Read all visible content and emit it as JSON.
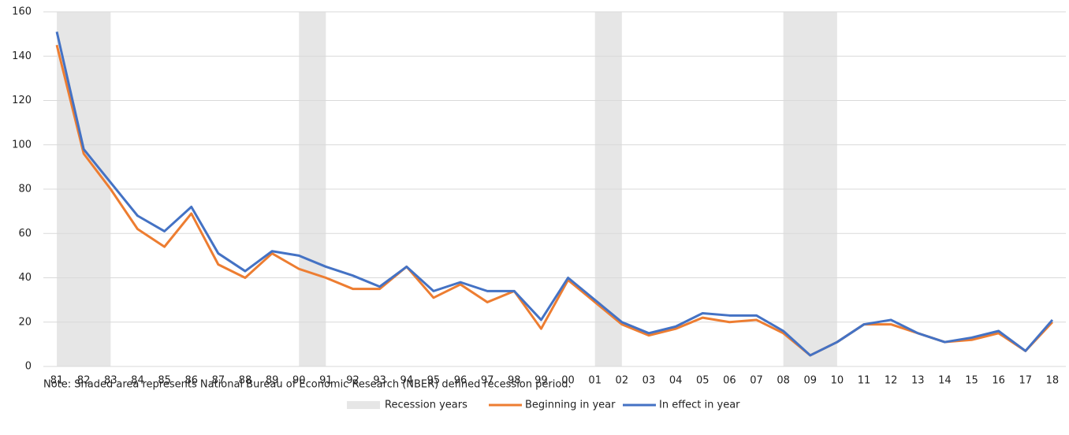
{
  "chart_data": {
    "type": "line",
    "note": "Note: Shaded area represents National Bureau of Economic Research (NBER) defined recession period.",
    "categories": [
      "81",
      "82",
      "83",
      "84",
      "85",
      "86",
      "87",
      "88",
      "89",
      "90",
      "91",
      "92",
      "93",
      "94",
      "95",
      "96",
      "97",
      "98",
      "99",
      "00",
      "01",
      "02",
      "03",
      "04",
      "05",
      "06",
      "07",
      "08",
      "09",
      "10",
      "11",
      "12",
      "13",
      "14",
      "15",
      "16",
      "17",
      "18"
    ],
    "series": [
      {
        "name": "Beginning in year",
        "color": "#ed7d31",
        "values": [
          145,
          96,
          80,
          62,
          54,
          69,
          46,
          40,
          51,
          44,
          40,
          35,
          35,
          45,
          31,
          37,
          29,
          34,
          17,
          39,
          29,
          19,
          14,
          17,
          22,
          20,
          21,
          15,
          5,
          11,
          19,
          19,
          15,
          11,
          12,
          15,
          7,
          20
        ]
      },
      {
        "name": "In effect in year",
        "color": "#4472c4",
        "values": [
          151,
          98,
          83,
          68,
          61,
          72,
          51,
          43,
          52,
          50,
          45,
          41,
          36,
          45,
          34,
          38,
          34,
          34,
          21,
          40,
          30,
          20,
          15,
          18,
          24,
          23,
          23,
          16,
          5,
          11,
          19,
          21,
          15,
          11,
          13,
          16,
          7,
          21
        ]
      }
    ],
    "recessions": {
      "name": "Recession years",
      "color": "#e6e6e6",
      "periods": [
        [
          "81",
          "83"
        ],
        [
          "90",
          "91"
        ],
        [
          "01",
          "02"
        ],
        [
          "08",
          "10"
        ]
      ]
    },
    "ylim": [
      0,
      160
    ],
    "yticks": [
      0,
      20,
      40,
      60,
      80,
      100,
      120,
      140,
      160
    ],
    "grid": true
  }
}
